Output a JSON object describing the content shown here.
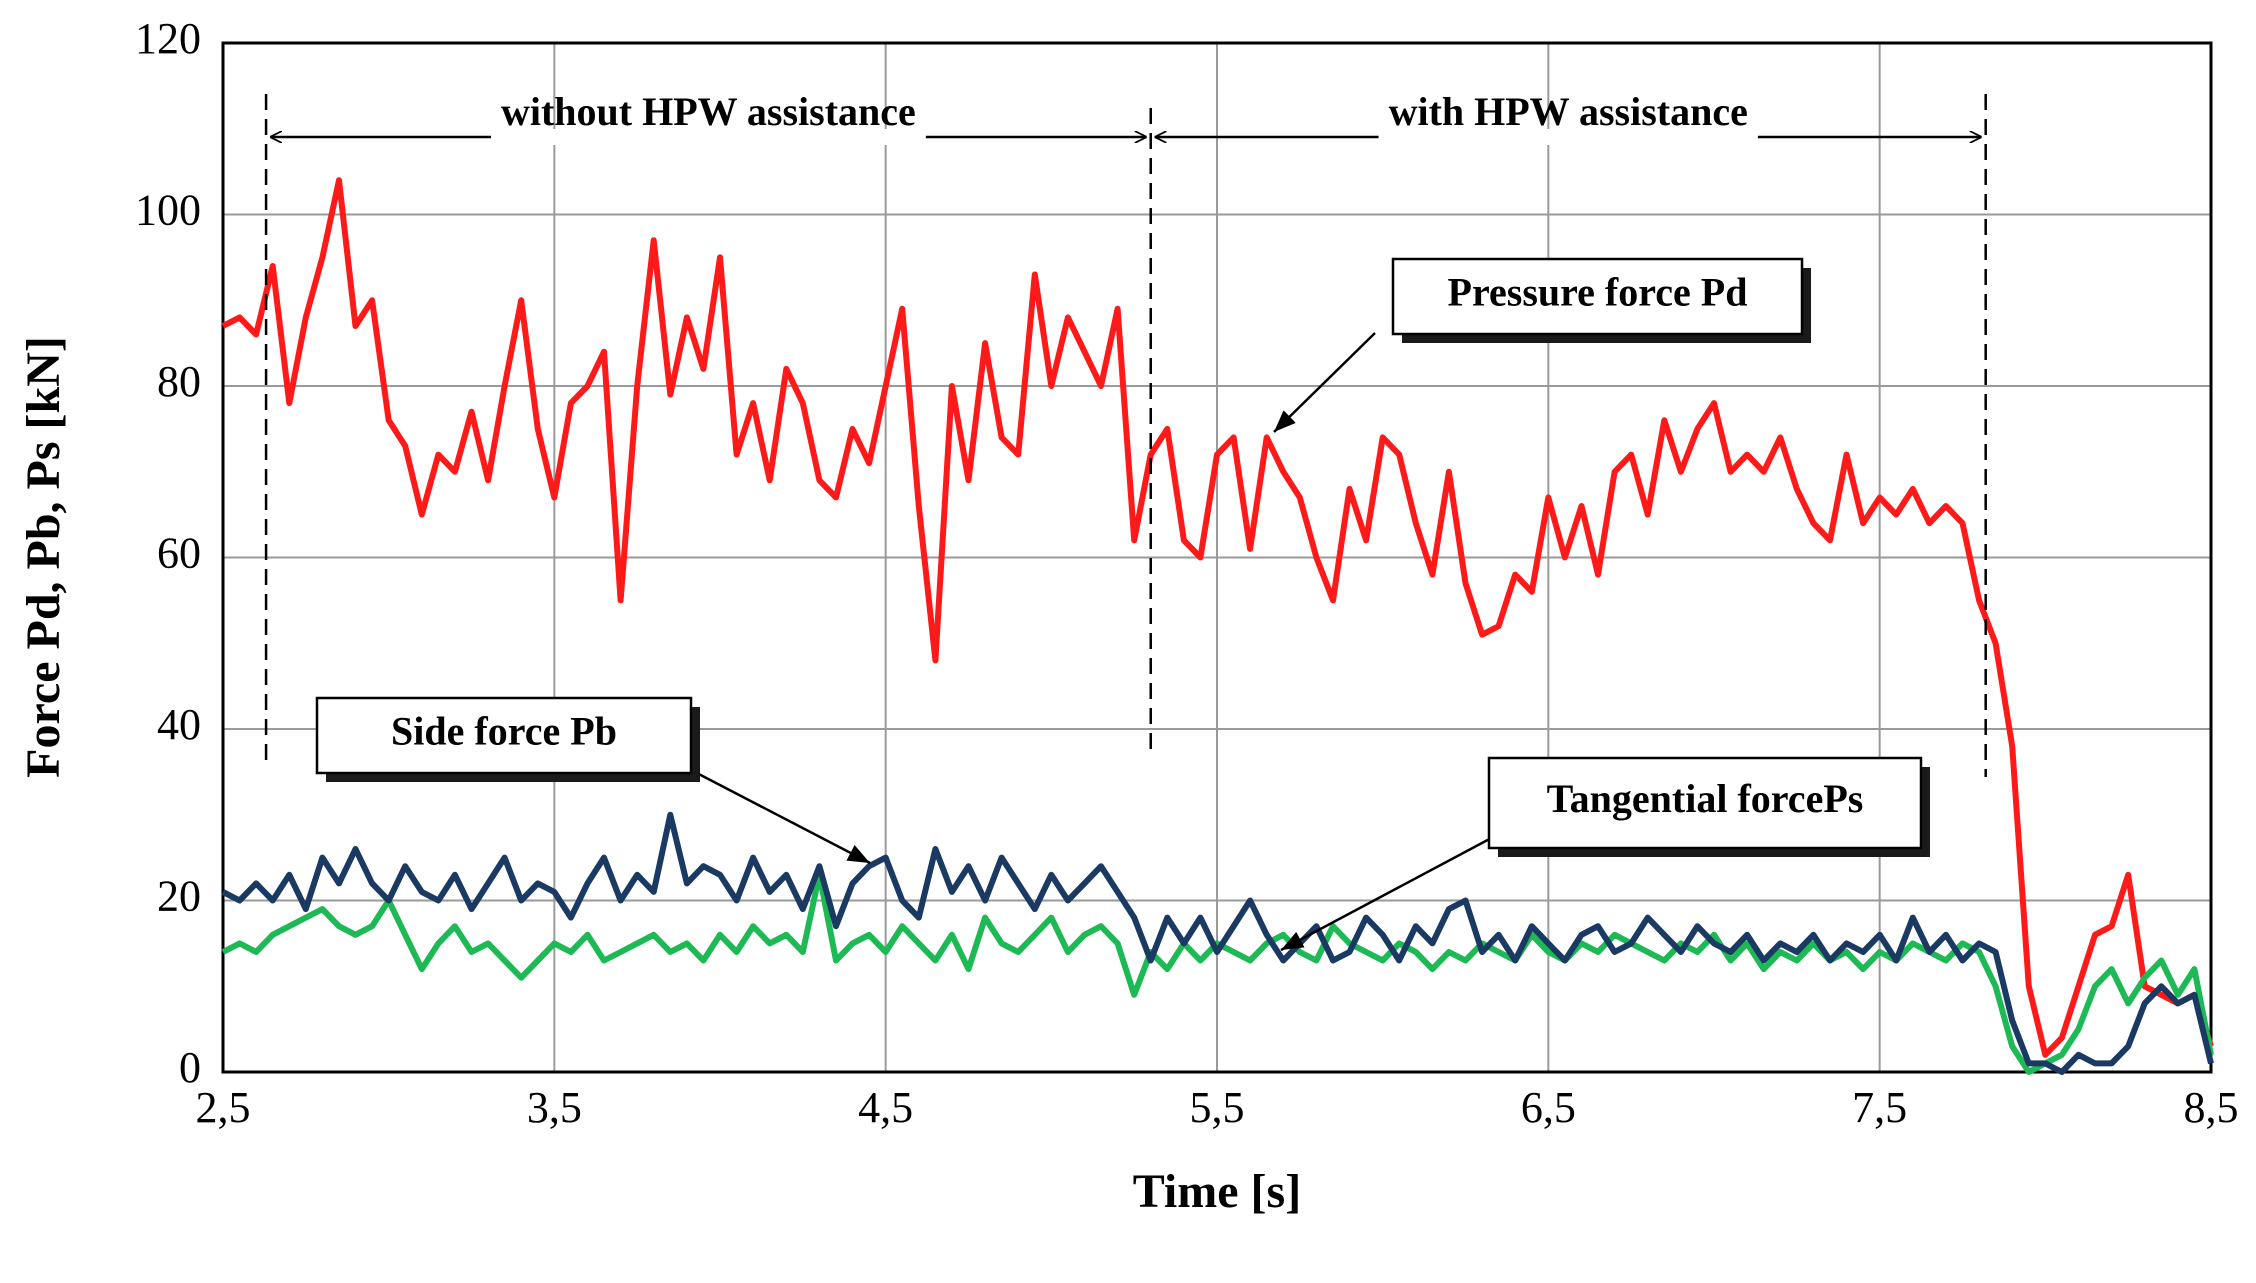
{
  "chart_data": {
    "type": "line",
    "xlabel": "Time [s]",
    "ylabel": "Force  Pd,  Pb,  Ps  [kN]",
    "xlim": [
      2.5,
      8.5
    ],
    "xticks": [
      {
        "value": 2.5,
        "label": "2,5"
      },
      {
        "value": 3.5,
        "label": "3,5"
      },
      {
        "value": 4.5,
        "label": "4,5"
      },
      {
        "value": 5.5,
        "label": "5,5"
      },
      {
        "value": 6.5,
        "label": "6,5"
      },
      {
        "value": 7.5,
        "label": "7,5"
      },
      {
        "value": 8.5,
        "label": "8,5"
      }
    ],
    "ylim": [
      0,
      120
    ],
    "yticks": [
      0,
      20,
      40,
      60,
      80,
      100,
      120
    ],
    "grid": true,
    "regions": [
      {
        "label": "without HPW assistance",
        "x": [
          2.63,
          5.3
        ]
      },
      {
        "label": "with HPW assistance",
        "x": [
          5.3,
          7.82
        ]
      }
    ],
    "x": [
      2.5,
      2.55,
      2.6,
      2.65,
      2.7,
      2.75,
      2.8,
      2.85,
      2.9,
      2.95,
      3.0,
      3.05,
      3.1,
      3.15,
      3.2,
      3.25,
      3.3,
      3.35,
      3.4,
      3.45,
      3.5,
      3.55,
      3.6,
      3.65,
      3.7,
      3.75,
      3.8,
      3.85,
      3.9,
      3.95,
      4.0,
      4.05,
      4.1,
      4.15,
      4.2,
      4.25,
      4.3,
      4.35,
      4.4,
      4.45,
      4.5,
      4.55,
      4.6,
      4.65,
      4.7,
      4.75,
      4.8,
      4.85,
      4.9,
      4.95,
      5.0,
      5.05,
      5.1,
      5.15,
      5.2,
      5.25,
      5.3,
      5.35,
      5.4,
      5.45,
      5.5,
      5.55,
      5.6,
      5.65,
      5.7,
      5.75,
      5.8,
      5.85,
      5.9,
      5.95,
      6.0,
      6.05,
      6.1,
      6.15,
      6.2,
      6.25,
      6.3,
      6.35,
      6.4,
      6.45,
      6.5,
      6.55,
      6.6,
      6.65,
      6.7,
      6.75,
      6.8,
      6.85,
      6.9,
      6.95,
      7.0,
      7.05,
      7.1,
      7.15,
      7.2,
      7.25,
      7.3,
      7.35,
      7.4,
      7.45,
      7.5,
      7.55,
      7.6,
      7.65,
      7.7,
      7.75,
      7.8,
      7.85,
      7.9,
      7.95,
      8.0,
      8.05,
      8.1,
      8.15,
      8.2,
      8.25,
      8.3,
      8.35,
      8.4,
      8.45,
      8.5
    ],
    "series": [
      {
        "name": "Pressure force Pd",
        "color": "#ff1a1a",
        "values": [
          87,
          88,
          86,
          94,
          78,
          88,
          95,
          104,
          87,
          90,
          76,
          73,
          65,
          72,
          70,
          77,
          69,
          80,
          90,
          75,
          67,
          78,
          80,
          84,
          55,
          80,
          97,
          79,
          88,
          82,
          95,
          72,
          78,
          69,
          82,
          78,
          69,
          67,
          75,
          71,
          80,
          89,
          66,
          48,
          80,
          69,
          85,
          74,
          72,
          93,
          80,
          88,
          84,
          80,
          89,
          62,
          72,
          75,
          62,
          60,
          72,
          74,
          61,
          74,
          70,
          67,
          60,
          55,
          68,
          62,
          74,
          72,
          64,
          58,
          70,
          57,
          51,
          52,
          58,
          56,
          67,
          60,
          66,
          58,
          70,
          72,
          65,
          76,
          70,
          75,
          78,
          70,
          72,
          70,
          74,
          68,
          64,
          62,
          72,
          64,
          67,
          65,
          68,
          64,
          66,
          64,
          55,
          50,
          38,
          10,
          2,
          4,
          10,
          16,
          17,
          23,
          10,
          9,
          8,
          9,
          3
        ]
      },
      {
        "name": "Tangential forcePs",
        "color": "#1db954",
        "values": [
          14,
          15,
          14,
          16,
          17,
          18,
          19,
          17,
          16,
          17,
          20,
          16,
          12,
          15,
          17,
          14,
          15,
          13,
          11,
          13,
          15,
          14,
          16,
          13,
          14,
          15,
          16,
          14,
          15,
          13,
          16,
          14,
          17,
          15,
          16,
          14,
          23,
          13,
          15,
          16,
          14,
          17,
          15,
          13,
          16,
          12,
          18,
          15,
          14,
          16,
          18,
          14,
          16,
          17,
          15,
          9,
          14,
          12,
          15,
          13,
          15,
          14,
          13,
          15,
          16,
          14,
          13,
          17,
          15,
          14,
          13,
          15,
          14,
          12,
          14,
          13,
          15,
          14,
          13,
          16,
          14,
          13,
          15,
          14,
          16,
          15,
          14,
          13,
          15,
          14,
          16,
          13,
          15,
          12,
          14,
          13,
          15,
          13,
          14,
          12,
          14,
          13,
          15,
          14,
          13,
          15,
          14,
          10,
          3,
          0,
          1,
          2,
          5,
          10,
          12,
          8,
          11,
          13,
          9,
          12,
          2
        ]
      },
      {
        "name": "Side force Pb",
        "color": "#1b3a63",
        "values": [
          21,
          20,
          22,
          20,
          23,
          19,
          25,
          22,
          26,
          22,
          20,
          24,
          21,
          20,
          23,
          19,
          22,
          25,
          20,
          22,
          21,
          18,
          22,
          25,
          20,
          23,
          21,
          30,
          22,
          24,
          23,
          20,
          25,
          21,
          23,
          19,
          24,
          17,
          22,
          24,
          25,
          20,
          18,
          26,
          21,
          24,
          20,
          25,
          22,
          19,
          23,
          20,
          22,
          24,
          21,
          18,
          13,
          18,
          15,
          18,
          14,
          17,
          20,
          16,
          13,
          15,
          17,
          13,
          14,
          18,
          16,
          13,
          17,
          15,
          19,
          20,
          14,
          16,
          13,
          17,
          15,
          13,
          16,
          17,
          14,
          15,
          18,
          16,
          14,
          17,
          15,
          14,
          16,
          13,
          15,
          14,
          16,
          13,
          15,
          14,
          16,
          13,
          18,
          14,
          16,
          13,
          15,
          14,
          6,
          1,
          1,
          0,
          2,
          1,
          1,
          3,
          8,
          10,
          8,
          9,
          1
        ]
      }
    ]
  }
}
